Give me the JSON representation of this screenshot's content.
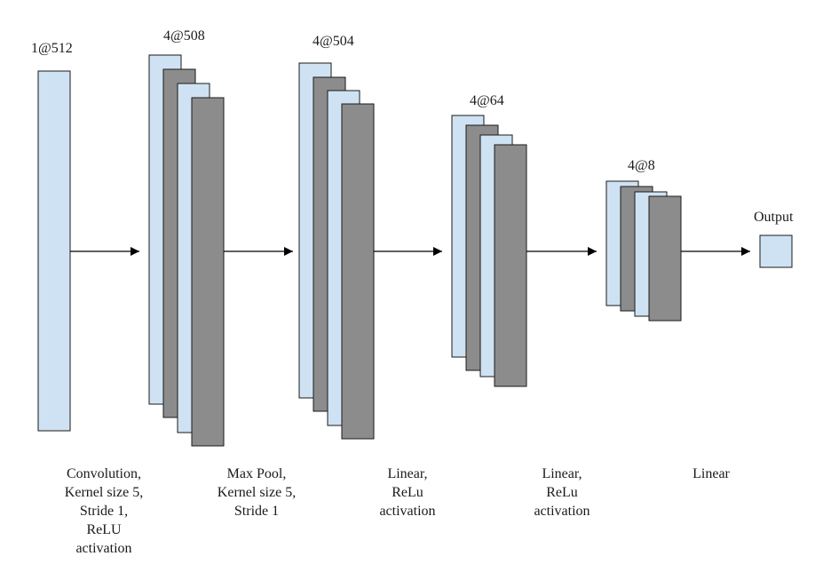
{
  "colors": {
    "light_block": "#cfe2f3",
    "dark_block": "#8c8c8c",
    "stroke": "#1a1a1a",
    "arrow": "#000000"
  },
  "layers": [
    {
      "label": "1@512"
    },
    {
      "label": "4@508"
    },
    {
      "label": "4@504"
    },
    {
      "label": "4@64"
    },
    {
      "label": "4@8"
    },
    {
      "label": "Output"
    }
  ],
  "operations": [
    {
      "lines": [
        "Convolution,",
        "Kernel size 5,",
        "Stride 1,",
        "ReLU",
        "activation"
      ]
    },
    {
      "lines": [
        "Max Pool,",
        "Kernel size 5,",
        "Stride 1"
      ]
    },
    {
      "lines": [
        "Linear,",
        "ReLu",
        "activation"
      ]
    },
    {
      "lines": [
        "Linear,",
        "ReLu",
        "activation"
      ]
    },
    {
      "lines": [
        "Linear"
      ]
    }
  ]
}
